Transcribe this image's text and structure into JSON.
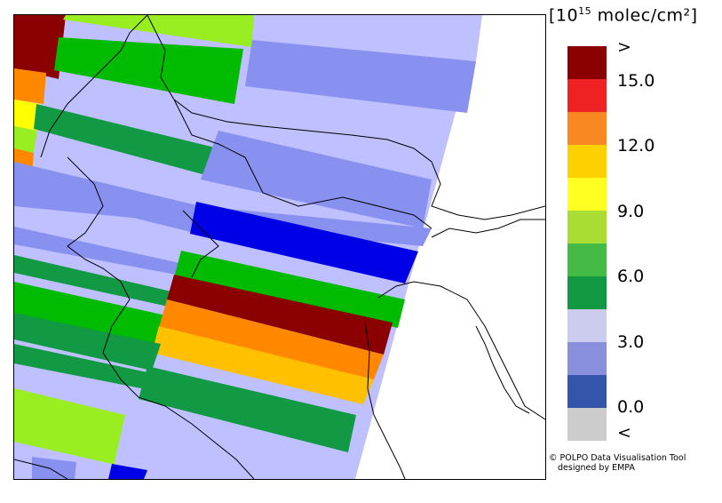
{
  "legend": {
    "unit_base": "10",
    "unit_exp": "15",
    "unit_rest": " molec/cm²",
    "colors": [
      "#8b0000",
      "#ee2222",
      "#f98822",
      "#ffd000",
      "#ffff22",
      "#aadd33",
      "#44bb44",
      "#119944",
      "#ccccee",
      "#8890dd",
      "#3355aa",
      "#cccccc"
    ],
    "labels": [
      ">",
      "15.0",
      "12.0",
      "9.0",
      "6.0",
      "3.0",
      "0.0",
      "<"
    ]
  },
  "credit": {
    "line1": "© POLPO Data Visualisation Tool",
    "line2": "designed by EMPA"
  },
  "swath_colors": {
    "dark_red": "#8b0000",
    "orange": "#ff8800",
    "yellow_orange": "#ffc000",
    "yellow": "#ffff00",
    "lime": "#99ff00",
    "yellow_green": "#99ee22",
    "green": "#00bb00",
    "dark_green": "#119944",
    "light_lavender": "#bfc0ff",
    "medium_periwinkle": "#8890f0",
    "blue": "#0000e6"
  }
}
